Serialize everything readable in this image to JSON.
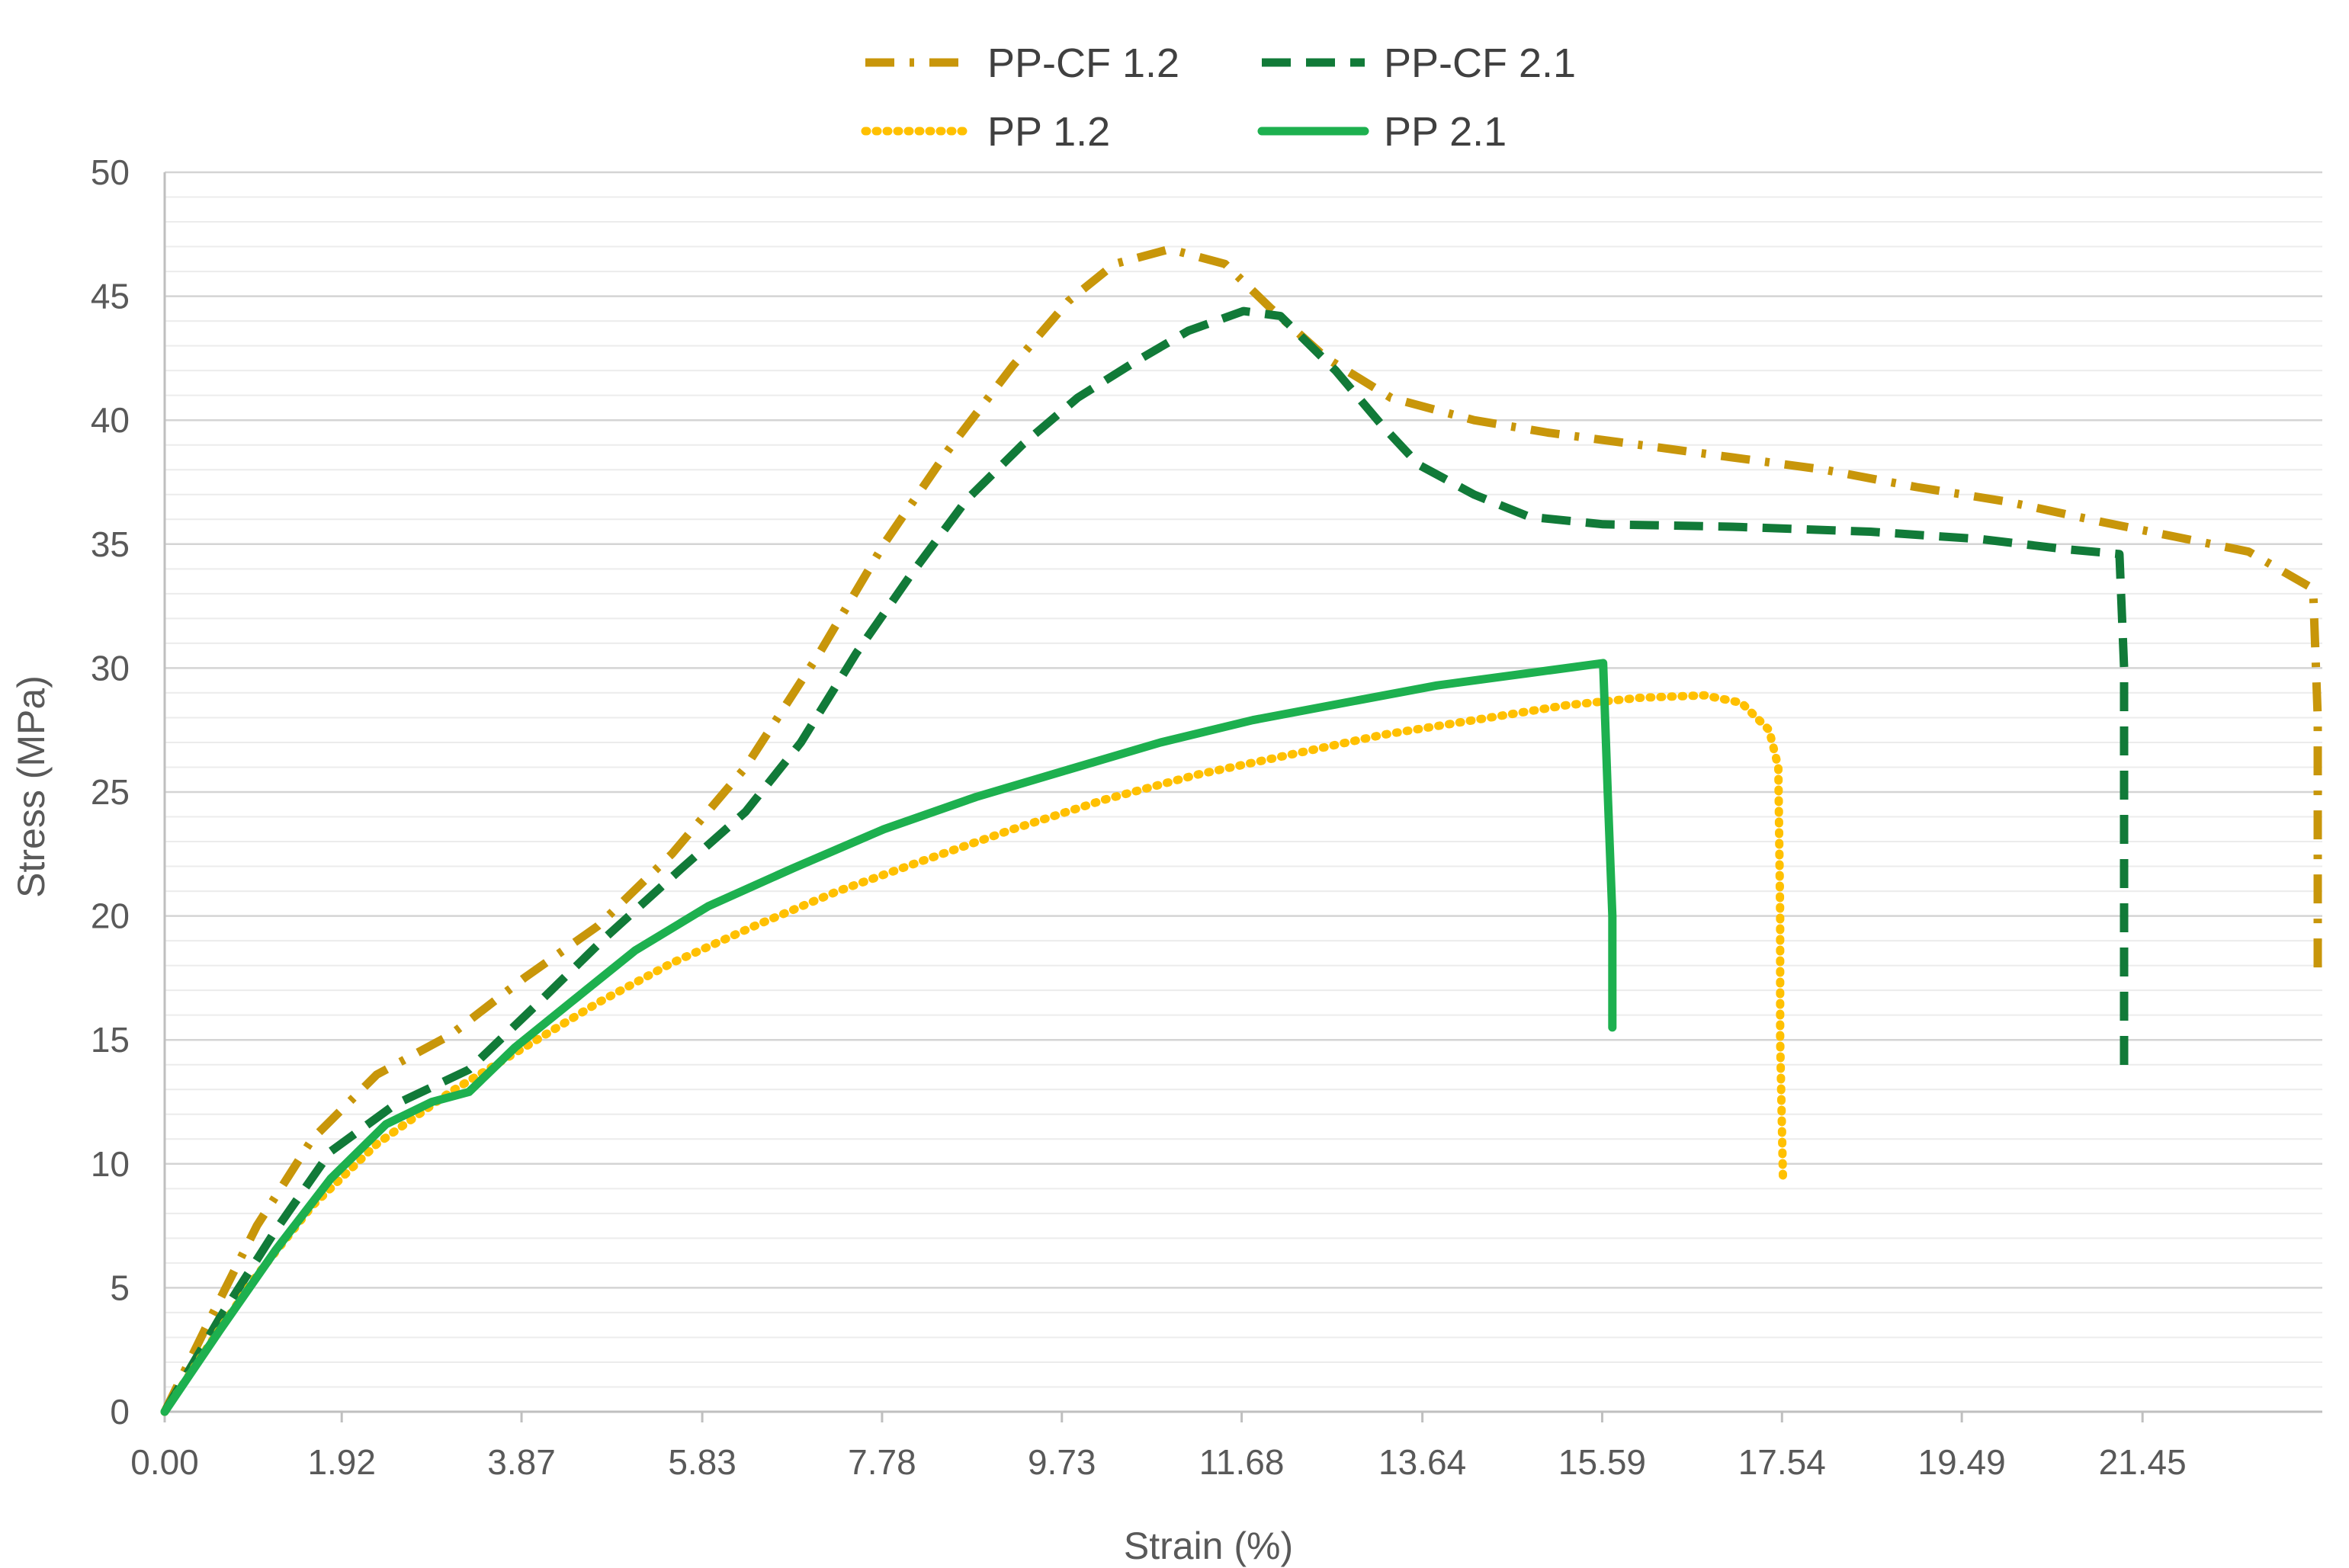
{
  "chart_data": {
    "type": "line",
    "xlabel": "Strain (%)",
    "ylabel": "Stress (MPa)",
    "xlim": [
      0,
      23.4
    ],
    "ylim": [
      0,
      50
    ],
    "x_ticks": [
      "0.00",
      "1.92",
      "3.87",
      "5.83",
      "7.78",
      "9.73",
      "11.68",
      "13.64",
      "15.59",
      "17.54",
      "19.49",
      "21.45"
    ],
    "y_ticks": [
      "0",
      "5",
      "10",
      "15",
      "20",
      "25",
      "30",
      "35",
      "40",
      "45",
      "50"
    ],
    "grid": "horizontal major and minor",
    "legend_position": "top",
    "series": [
      {
        "name": "PP-CF 1.2",
        "color": "#C8960A",
        "style": "dash-dot",
        "points": [
          [
            0.0,
            0.0
          ],
          [
            0.5,
            3.8
          ],
          [
            1.0,
            7.5
          ],
          [
            1.6,
            11.0
          ],
          [
            2.3,
            13.6
          ],
          [
            3.1,
            15.2
          ],
          [
            3.9,
            17.5
          ],
          [
            4.7,
            19.6
          ],
          [
            5.5,
            22.5
          ],
          [
            6.3,
            26.0
          ],
          [
            7.1,
            30.6
          ],
          [
            7.8,
            35.0
          ],
          [
            8.5,
            38.8
          ],
          [
            9.2,
            42.2
          ],
          [
            9.8,
            44.8
          ],
          [
            10.3,
            46.3
          ],
          [
            10.9,
            46.9
          ],
          [
            11.5,
            46.3
          ],
          [
            12.0,
            44.5
          ],
          [
            12.6,
            42.5
          ],
          [
            13.3,
            40.9
          ],
          [
            14.2,
            40.0
          ],
          [
            15.0,
            39.5
          ],
          [
            16.0,
            39.0
          ],
          [
            17.0,
            38.5
          ],
          [
            18.0,
            38.0
          ],
          [
            19.0,
            37.3
          ],
          [
            20.0,
            36.7
          ],
          [
            21.0,
            35.9
          ],
          [
            21.8,
            35.3
          ],
          [
            22.6,
            34.7
          ],
          [
            23.3,
            33.2
          ],
          [
            23.35,
            28.0
          ],
          [
            23.35,
            22.0
          ],
          [
            23.35,
            17.5
          ]
        ]
      },
      {
        "name": "PP-CF 2.1",
        "color": "#117A38",
        "style": "dashed",
        "points": [
          [
            0.0,
            0.0
          ],
          [
            0.6,
            3.8
          ],
          [
            1.2,
            7.3
          ],
          [
            1.8,
            10.5
          ],
          [
            2.5,
            12.4
          ],
          [
            3.3,
            13.8
          ],
          [
            4.0,
            16.3
          ],
          [
            4.8,
            19.2
          ],
          [
            5.6,
            21.9
          ],
          [
            6.3,
            24.2
          ],
          [
            6.9,
            27.0
          ],
          [
            7.5,
            30.6
          ],
          [
            8.1,
            33.8
          ],
          [
            8.7,
            36.8
          ],
          [
            9.3,
            39.0
          ],
          [
            9.9,
            40.9
          ],
          [
            10.5,
            42.3
          ],
          [
            11.1,
            43.6
          ],
          [
            11.7,
            44.4
          ],
          [
            12.1,
            44.2
          ],
          [
            12.7,
            42.0
          ],
          [
            13.2,
            39.8
          ],
          [
            13.6,
            38.2
          ],
          [
            14.2,
            37.0
          ],
          [
            14.8,
            36.1
          ],
          [
            15.6,
            35.8
          ],
          [
            17.0,
            35.7
          ],
          [
            18.5,
            35.5
          ],
          [
            19.7,
            35.2
          ],
          [
            20.6,
            34.8
          ],
          [
            21.2,
            34.6
          ],
          [
            21.25,
            30.0
          ],
          [
            21.25,
            22.0
          ],
          [
            21.25,
            13.5
          ]
        ]
      },
      {
        "name": "PP 1.2",
        "color": "#FFC000",
        "style": "dotted",
        "points": [
          [
            0.0,
            0.0
          ],
          [
            0.5,
            2.8
          ],
          [
            1.0,
            5.5
          ],
          [
            1.6,
            8.3
          ],
          [
            2.3,
            10.8
          ],
          [
            3.1,
            12.9
          ],
          [
            3.9,
            14.7
          ],
          [
            4.7,
            16.5
          ],
          [
            5.5,
            18.1
          ],
          [
            6.4,
            19.6
          ],
          [
            7.3,
            21.0
          ],
          [
            8.2,
            22.2
          ],
          [
            9.2,
            23.5
          ],
          [
            10.2,
            24.7
          ],
          [
            11.2,
            25.7
          ],
          [
            12.2,
            26.5
          ],
          [
            13.2,
            27.3
          ],
          [
            14.2,
            27.9
          ],
          [
            15.2,
            28.5
          ],
          [
            16.0,
            28.8
          ],
          [
            16.7,
            28.9
          ],
          [
            17.1,
            28.6
          ],
          [
            17.4,
            27.5
          ],
          [
            17.5,
            26.0
          ],
          [
            17.52,
            20.0
          ],
          [
            17.52,
            15.0
          ],
          [
            17.55,
            9.5
          ]
        ]
      },
      {
        "name": "PP 2.1",
        "color": "#1DB04F",
        "style": "solid",
        "points": [
          [
            0.0,
            0.0
          ],
          [
            0.6,
            3.3
          ],
          [
            1.2,
            6.5
          ],
          [
            1.8,
            9.4
          ],
          [
            2.4,
            11.6
          ],
          [
            2.9,
            12.5
          ],
          [
            3.3,
            12.9
          ],
          [
            3.8,
            14.7
          ],
          [
            4.4,
            16.5
          ],
          [
            5.1,
            18.6
          ],
          [
            5.9,
            20.4
          ],
          [
            6.8,
            21.9
          ],
          [
            7.8,
            23.5
          ],
          [
            8.8,
            24.8
          ],
          [
            9.8,
            25.9
          ],
          [
            10.8,
            27.0
          ],
          [
            11.8,
            27.9
          ],
          [
            12.8,
            28.6
          ],
          [
            13.8,
            29.3
          ],
          [
            14.8,
            29.8
          ],
          [
            15.6,
            30.2
          ],
          [
            15.65,
            25.0
          ],
          [
            15.7,
            20.0
          ],
          [
            15.7,
            15.5
          ]
        ]
      }
    ]
  }
}
